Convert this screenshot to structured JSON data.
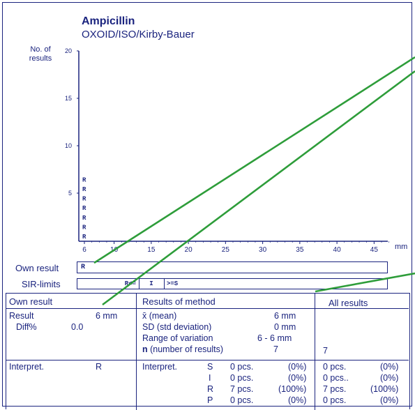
{
  "header": {
    "title": "Ampicillin",
    "subtitle": "OXOID/ISO/Kirby-Bauer",
    "y_label_line1": "No. of",
    "y_label_line2": "results",
    "x_unit": "mm"
  },
  "chart_data": {
    "type": "bar",
    "x_ticks": [
      6,
      10,
      15,
      20,
      25,
      30,
      35,
      40,
      45
    ],
    "y_ticks": [
      5,
      10,
      15,
      20
    ],
    "xlim": [
      6,
      47
    ],
    "ylim": [
      0,
      20
    ],
    "xlabel": "mm",
    "ylabel": "No. of results",
    "series": [
      {
        "x": 6,
        "count": 7,
        "letter": "R"
      }
    ]
  },
  "own_result": {
    "label": "Own result",
    "letter": "R"
  },
  "sir_limits": {
    "label": "SIR-limits",
    "r": "R<=",
    "i": "I",
    "s": ">=S"
  },
  "table": {
    "own": {
      "header": "Own result",
      "result_label": "Result",
      "result_value": "6 mm",
      "diff_label": "Diff%",
      "diff_value": "0.0",
      "interp_label": "Interpret.",
      "interp_value": "R"
    },
    "method": {
      "header": "Results of method",
      "mean_label": "x̄ (mean)",
      "mean_value": "6 mm",
      "sd_label": "SD (std deviation)",
      "sd_value": "0 mm",
      "range_label": "Range of variation",
      "range_value": "6 - 6 mm",
      "n_label_bold": "n",
      "n_label_rest": " (number of results)",
      "n_value": "7",
      "interp_label": "Interpret.",
      "rows": [
        {
          "letter": "S",
          "pcs": "0 pcs.",
          "pct": "(0%)"
        },
        {
          "letter": "I",
          "pcs": "0 pcs.",
          "pct": "(0%)"
        },
        {
          "letter": "R",
          "pcs": "7 pcs.",
          "pct": "(100%)"
        },
        {
          "letter": "P",
          "pcs": "0 pcs.",
          "pct": "(0%)"
        }
      ]
    },
    "all": {
      "header": "All results",
      "n_value": "7",
      "rows": [
        {
          "pcs": "0 pcs.",
          "pct": "(0%)"
        },
        {
          "pcs": "0 pcs..",
          "pct": "(0%)"
        },
        {
          "pcs": "7 pcs.",
          "pct": "(100%)"
        },
        {
          "pcs": "0 pcs.",
          "pct": "(0%)"
        }
      ]
    }
  },
  "colors": {
    "ink": "#1a237e",
    "marker": "#2e9d3a"
  }
}
